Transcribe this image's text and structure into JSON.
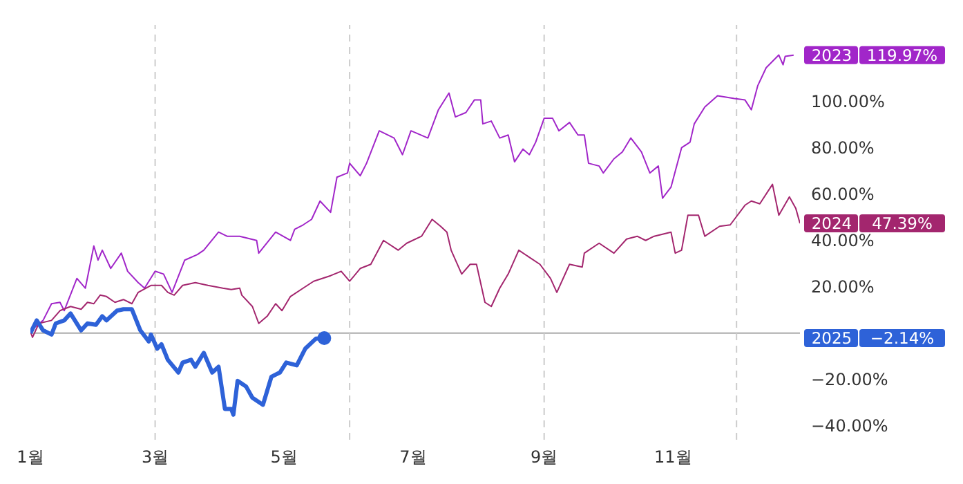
{
  "chart_data": {
    "type": "line",
    "xlim": [
      "--01-01",
      "--12-31"
    ],
    "xticks": [
      {
        "value": "--01-01",
        "label": "1월"
      },
      {
        "value": "--03-01",
        "label": "3월"
      },
      {
        "value": "--05-01",
        "label": "5월"
      },
      {
        "value": "--07-01",
        "label": "7월"
      },
      {
        "value": "--09-01",
        "label": "9월"
      },
      {
        "value": "--11-01",
        "label": "11월"
      }
    ],
    "ylim": [
      -46,
      133
    ],
    "yticks": [
      {
        "value": -40,
        "label": "−40.00%"
      },
      {
        "value": -20,
        "label": "−20.00%"
      },
      {
        "value": 20,
        "label": "20.00%"
      },
      {
        "value": 40,
        "label": "40.00%"
      },
      {
        "value": 60,
        "label": "60.00%"
      },
      {
        "value": 80,
        "label": "80.00%"
      },
      {
        "value": 100,
        "label": "100.00%"
      }
    ],
    "grid": false,
    "legend": "right",
    "annotations": [
      "119.97%",
      "47.39%",
      "−2.14%"
    ],
    "ref_lines": [
      {
        "axis": "y",
        "value": 0,
        "color": "#aaaaaa",
        "line_style": "solid"
      },
      {
        "axis": "x",
        "value": "--03-01",
        "color": "#cccccc",
        "line_style": "dashed"
      },
      {
        "axis": "x",
        "value": "--06-01",
        "color": "#cccccc",
        "line_style": "dashed"
      },
      {
        "axis": "x",
        "value": "--09-01",
        "color": "#cccccc",
        "line_style": "dashed"
      },
      {
        "axis": "x",
        "value": "--12-01",
        "color": "#cccccc",
        "line_style": "dashed"
      }
    ],
    "series": [
      {
        "name": "2023",
        "color": "#a126c9",
        "x": [
          "--01-01",
          "--01-07",
          "--01-11",
          "--01-15",
          "--01-17",
          "--01-23",
          "--01-27",
          "--01-31",
          "--02-02",
          "--02-04",
          "--02-08",
          "--02-13",
          "--02-16",
          "--02-21",
          "--02-24",
          "--03-01",
          "--03-05",
          "--03-09",
          "--03-15",
          "--03-21",
          "--03-24",
          "--03-31",
          "--04-04",
          "--04-10",
          "--04-18",
          "--04-19",
          "--04-27",
          "--05-04",
          "--05-06",
          "--05-10",
          "--05-14",
          "--05-18",
          "--05-23",
          "--05-26",
          "--05-31",
          "--06-01",
          "--06-06",
          "--06-09",
          "--06-15",
          "--06-22",
          "--06-26",
          "--06-30",
          "--07-08",
          "--07-13",
          "--07-18",
          "--07-21",
          "--07-26",
          "--07-30",
          "--08-02",
          "--08-03",
          "--08-07",
          "--08-11",
          "--08-15",
          "--08-18",
          "--08-22",
          "--08-25",
          "--08-28",
          "--09-01",
          "--09-05",
          "--09-08",
          "--09-13",
          "--09-17",
          "--09-20",
          "--09-22",
          "--09-27",
          "--09-29",
          "--10-04",
          "--10-08",
          "--10-12",
          "--10-17",
          "--10-21",
          "--10-25",
          "--10-27",
          "--10-31",
          "--11-05",
          "--11-09",
          "--11-11",
          "--11-16",
          "--11-22",
          "--11-30",
          "--12-05",
          "--12-08",
          "--12-11",
          "--12-15",
          "--12-21",
          "--12-23",
          "--12-24",
          "--12-28"
        ],
        "values": [
          1,
          5.5,
          12.7,
          13.3,
          9.7,
          23.6,
          19.4,
          37.6,
          31.5,
          35.8,
          27.9,
          34.5,
          26.7,
          21.8,
          19.4,
          26.7,
          25.5,
          17.6,
          31.5,
          33.9,
          35.8,
          43.6,
          41.8,
          41.8,
          40,
          34.5,
          43.6,
          40,
          44.8,
          46.7,
          49.1,
          57,
          52.1,
          67.3,
          69.1,
          73.3,
          67.9,
          73.3,
          87.3,
          84.2,
          77,
          87.3,
          84.2,
          96.4,
          103.6,
          93.3,
          95.2,
          100.6,
          100.6,
          90.3,
          91.5,
          84.2,
          85.5,
          73.9,
          79.4,
          77,
          82.4,
          92.7,
          92.7,
          87.3,
          90.9,
          85.5,
          85.5,
          73.3,
          72.1,
          69.1,
          75.2,
          78.2,
          84.2,
          78.2,
          69.1,
          72.1,
          58.2,
          63,
          80,
          82.4,
          90.3,
          97.6,
          102.4,
          101.2,
          100.6,
          96.4,
          106.7,
          114.5,
          120,
          115.8,
          119.4,
          119.97
        ]
      },
      {
        "name": "2024",
        "color": "#a3266e",
        "x": [
          "--01-01",
          "--01-02",
          "--01-05",
          "--01-11",
          "--01-15",
          "--01-20",
          "--01-25",
          "--01-28",
          "--01-31",
          "--02-03",
          "--02-06",
          "--02-10",
          "--02-14",
          "--02-18",
          "--02-21",
          "--02-27",
          "--03-04",
          "--03-07",
          "--03-10",
          "--03-14",
          "--03-20",
          "--03-26",
          "--04-02",
          "--04-06",
          "--04-10",
          "--04-11",
          "--04-16",
          "--04-19",
          "--04-23",
          "--04-27",
          "--04-30",
          "--05-04",
          "--05-10",
          "--05-15",
          "--05-23",
          "--05-28",
          "--06-01",
          "--06-06",
          "--06-11",
          "--06-17",
          "--06-24",
          "--06-28",
          "--07-05",
          "--07-10",
          "--07-14",
          "--07-17",
          "--07-19",
          "--07-24",
          "--07-28",
          "--07-31",
          "--08-04",
          "--08-07",
          "--08-11",
          "--08-15",
          "--08-20",
          "--08-25",
          "--08-30",
          "--09-04",
          "--09-07",
          "--09-13",
          "--09-19",
          "--09-20",
          "--09-27",
          "--10-04",
          "--10-10",
          "--10-15",
          "--10-19",
          "--10-23",
          "--10-31",
          "--11-02",
          "--11-05",
          "--11-08",
          "--11-13",
          "--11-16",
          "--11-23",
          "--11-28",
          "--12-05",
          "--12-08",
          "--12-12",
          "--12-18",
          "--12-21",
          "--12-26",
          "--12-29",
          "--12-31"
        ],
        "values": [
          0.6,
          -1.8,
          4.2,
          5.5,
          9.7,
          11.5,
          10.3,
          13.3,
          12.7,
          16.4,
          15.8,
          13.3,
          14.5,
          12.7,
          17.6,
          20.6,
          20.6,
          17.6,
          16.4,
          20.6,
          21.8,
          20.6,
          19.4,
          18.8,
          19.4,
          16.4,
          11.5,
          4.2,
          7.3,
          12.7,
          9.7,
          15.8,
          19.4,
          22.4,
          24.8,
          26.7,
          22.4,
          27.9,
          29.7,
          40,
          35.8,
          38.8,
          41.8,
          49.1,
          46.1,
          43.6,
          35.8,
          25.5,
          29.7,
          29.7,
          13.3,
          11.5,
          19.4,
          25.5,
          35.8,
          32.7,
          29.7,
          23.6,
          17.6,
          29.7,
          28.5,
          34.5,
          38.8,
          34.5,
          40.6,
          41.8,
          40,
          41.8,
          43.6,
          34.5,
          35.8,
          50.9,
          50.9,
          41.8,
          46.1,
          46.7,
          55.2,
          57,
          55.8,
          64.2,
          50.9,
          58.8,
          53.9,
          47.39
        ]
      },
      {
        "name": "2025",
        "color": "#2e62d8",
        "x": [
          "--01-01",
          "--01-04",
          "--01-07",
          "--01-11",
          "--01-13",
          "--01-17",
          "--01-20",
          "--01-25",
          "--01-28",
          "--02-01",
          "--02-04",
          "--02-06",
          "--02-11",
          "--02-14",
          "--02-18",
          "--02-22",
          "--02-26",
          "--02-27",
          "--03-02",
          "--03-04",
          "--03-07",
          "--03-12",
          "--03-14",
          "--03-18",
          "--03-20",
          "--03-24",
          "--03-28",
          "--03-31",
          "--04-03",
          "--04-06",
          "--04-07",
          "--04-09",
          "--04-13",
          "--04-16",
          "--04-21",
          "--04-25",
          "--04-29",
          "--05-02",
          "--05-07",
          "--05-11",
          "--05-16",
          "--05-20"
        ],
        "values": [
          0,
          5.5,
          1.2,
          -0.6,
          4.2,
          5.5,
          8.5,
          1.2,
          4.2,
          3.6,
          7.3,
          5.5,
          9.7,
          10.3,
          10.3,
          1.2,
          -3.6,
          -0.6,
          -6.7,
          -4.8,
          -11.5,
          -17,
          -12.7,
          -11.5,
          -14.5,
          -8.5,
          -17,
          -14.5,
          -32.7,
          -32.7,
          -35.2,
          -20.6,
          -23,
          -27.9,
          -30.9,
          -18.8,
          -17,
          -12.7,
          -13.9,
          -6.7,
          -2.4,
          -2.14
        ]
      }
    ]
  }
}
